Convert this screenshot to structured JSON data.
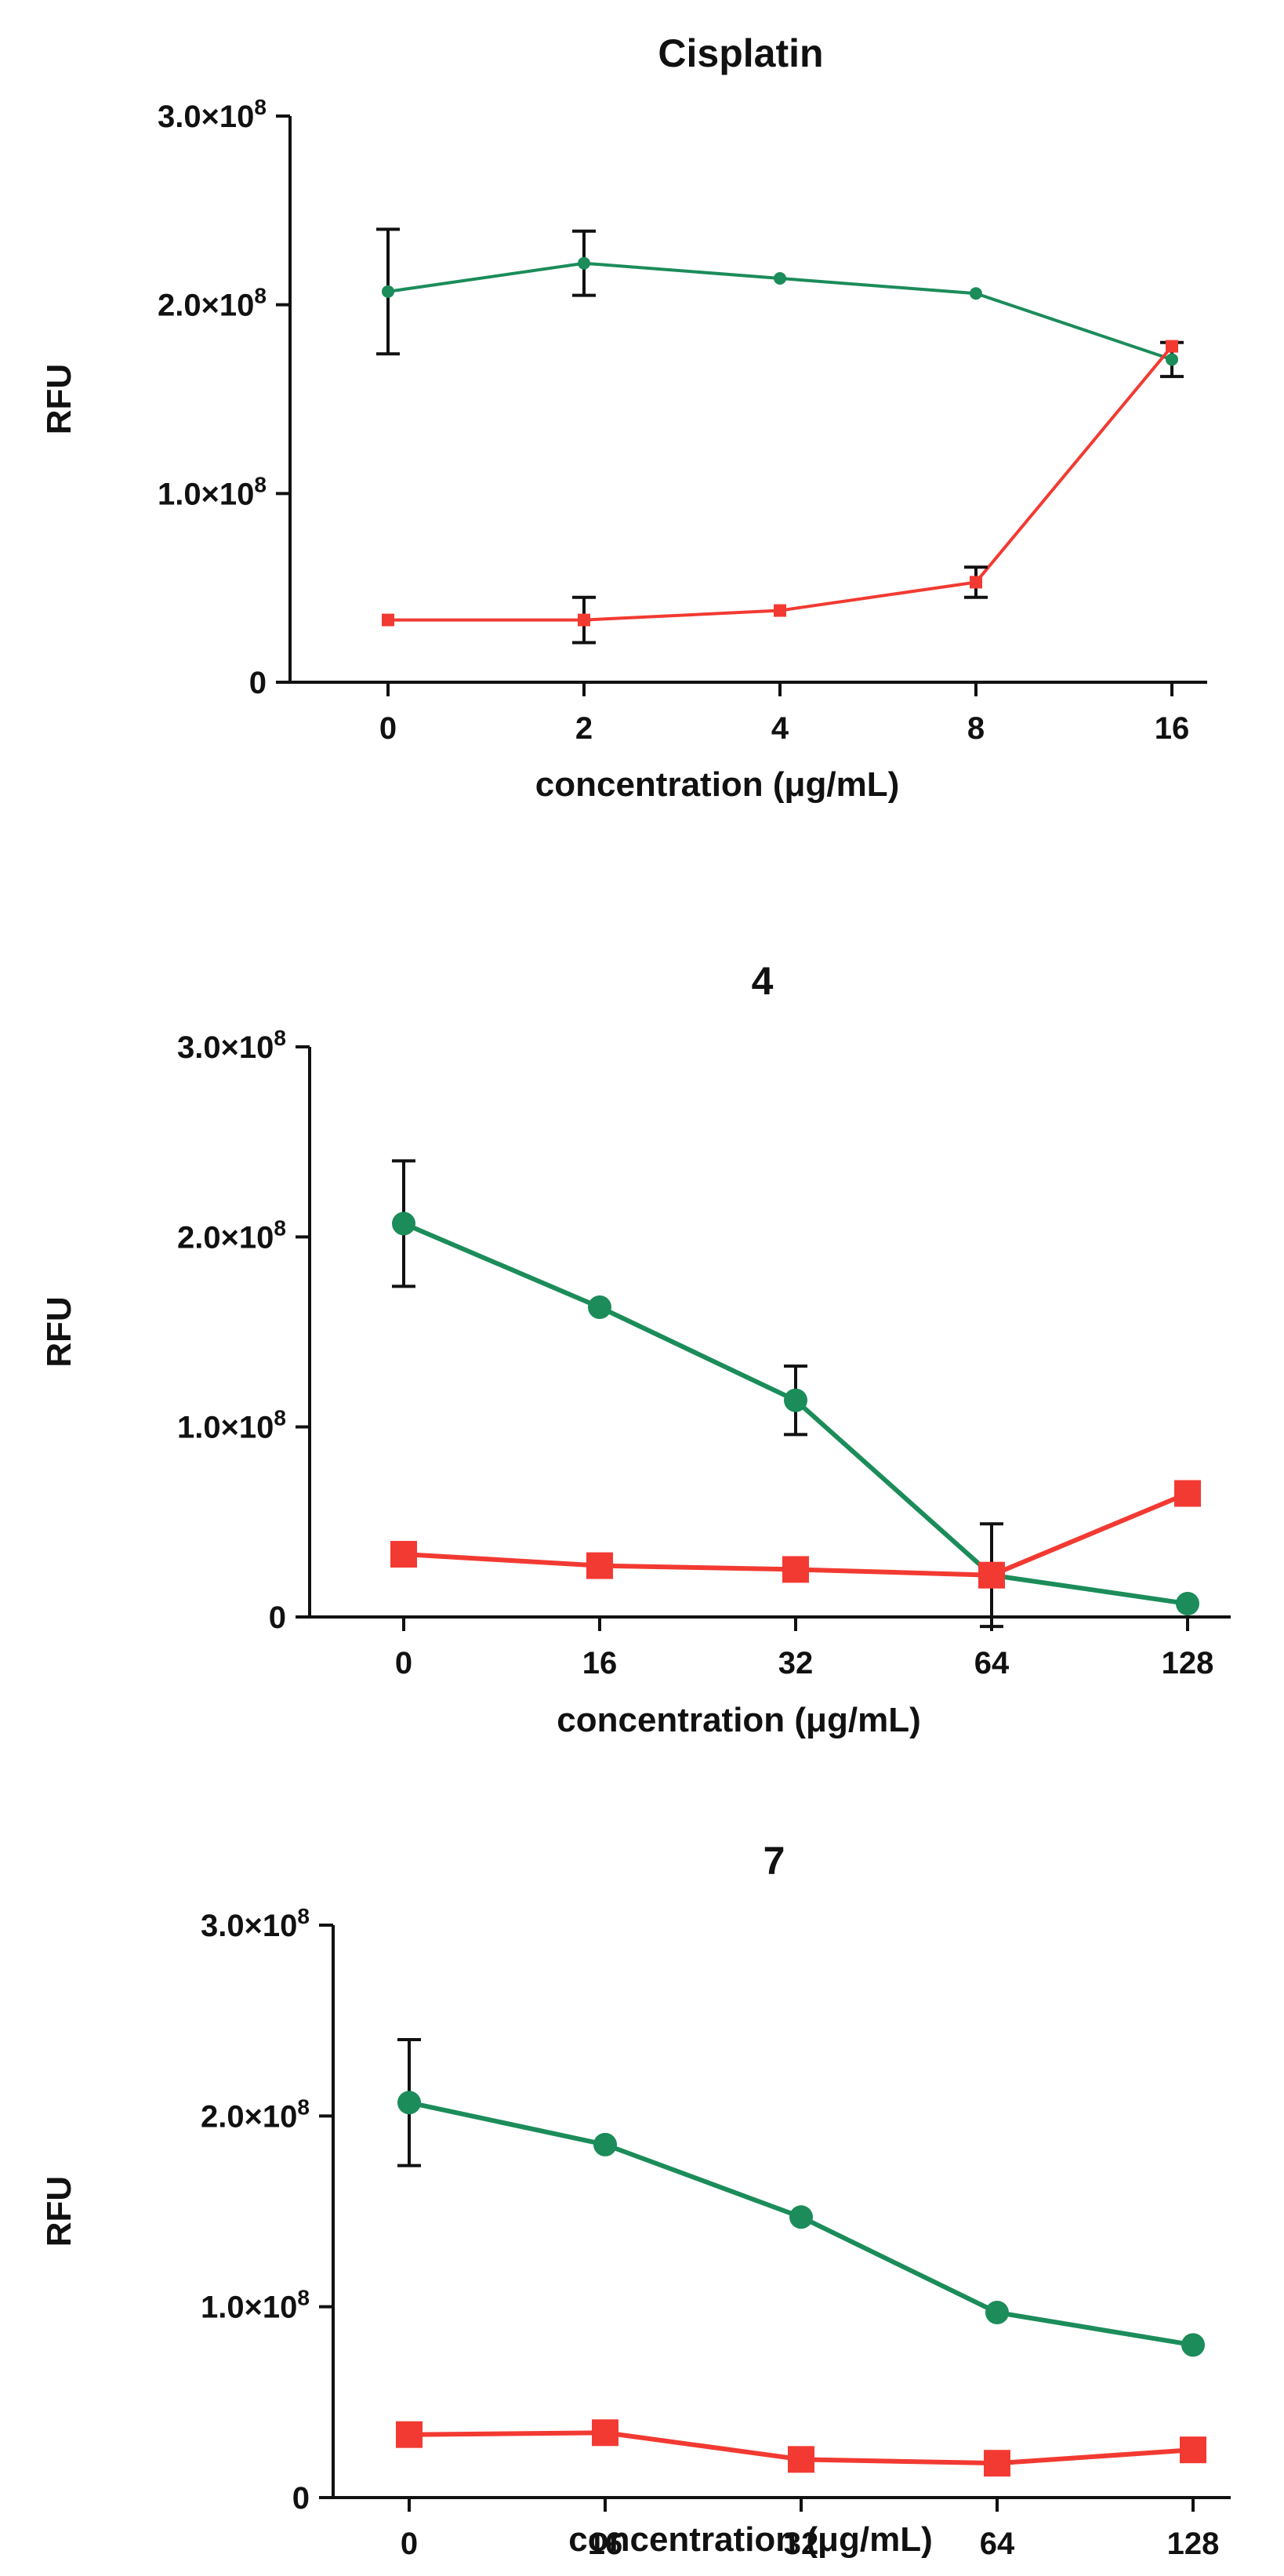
{
  "chart_data": [
    {
      "type": "line",
      "title": "Cisplatin",
      "xlabel": "concentration (μg/mL)",
      "ylabel": "RFU",
      "ylim": [
        0,
        300000000
      ],
      "categories": [
        "0",
        "2",
        "4",
        "8",
        "16"
      ],
      "yticks": [
        {
          "value": 0,
          "mantissa": "0",
          "exp": ""
        },
        {
          "value": 100000000,
          "mantissa": "1.0×10",
          "exp": "8"
        },
        {
          "value": 200000000,
          "mantissa": "2.0×10",
          "exp": "8"
        },
        {
          "value": 300000000,
          "mantissa": "3.0×10",
          "exp": "8"
        }
      ],
      "grid": false,
      "legend": "none",
      "series": [
        {
          "name": "green",
          "color": "#1b8c5a",
          "marker": "circle",
          "values": [
            207000000,
            222000000,
            214000000,
            206000000,
            171000000
          ],
          "errors": [
            33000000,
            17000000,
            0,
            0,
            9000000
          ]
        },
        {
          "name": "red",
          "color": "#f23a32",
          "marker": "square",
          "values": [
            33000000,
            33000000,
            38000000,
            53000000,
            178000000
          ],
          "errors": [
            0,
            12000000,
            0,
            8000000,
            0
          ]
        }
      ]
    },
    {
      "type": "line",
      "title": "4",
      "xlabel": "concentration (μg/mL)",
      "ylabel": "RFU",
      "ylim": [
        0,
        300000000
      ],
      "categories": [
        "0",
        "16",
        "32",
        "64",
        "128"
      ],
      "yticks": [
        {
          "value": 0,
          "mantissa": "0",
          "exp": ""
        },
        {
          "value": 100000000,
          "mantissa": "1.0×10",
          "exp": "8"
        },
        {
          "value": 200000000,
          "mantissa": "2.0×10",
          "exp": "8"
        },
        {
          "value": 300000000,
          "mantissa": "3.0×10",
          "exp": "8"
        }
      ],
      "grid": false,
      "legend": "none",
      "series": [
        {
          "name": "green",
          "color": "#1b8c5a",
          "marker": "circle",
          "values": [
            207000000,
            163000000,
            114000000,
            22000000,
            7000000
          ],
          "errors": [
            33000000,
            0,
            18000000,
            27000000,
            0
          ]
        },
        {
          "name": "red",
          "color": "#f23a32",
          "marker": "square",
          "values": [
            33000000,
            27000000,
            25000000,
            22000000,
            65000000
          ],
          "errors": [
            0,
            0,
            0,
            0,
            0
          ]
        }
      ]
    },
    {
      "type": "line",
      "title": "7",
      "xlabel": "concentration (μg/mL)",
      "ylabel": "RFU",
      "ylim": [
        0,
        300000000
      ],
      "categories": [
        "0",
        "16",
        "32",
        "64",
        "128"
      ],
      "yticks": [
        {
          "value": 0,
          "mantissa": "0",
          "exp": ""
        },
        {
          "value": 100000000,
          "mantissa": "1.0×10",
          "exp": "8"
        },
        {
          "value": 200000000,
          "mantissa": "2.0×10",
          "exp": "8"
        },
        {
          "value": 300000000,
          "mantissa": "3.0×10",
          "exp": "8"
        }
      ],
      "grid": false,
      "legend": "none",
      "series": [
        {
          "name": "green",
          "color": "#1b8c5a",
          "marker": "circle",
          "values": [
            207000000,
            185000000,
            147000000,
            97000000,
            80000000
          ],
          "errors": [
            33000000,
            0,
            0,
            0,
            0
          ]
        },
        {
          "name": "red",
          "color": "#f23a32",
          "marker": "square",
          "values": [
            33000000,
            34000000,
            20000000,
            18000000,
            25000000
          ],
          "errors": [
            0,
            0,
            0,
            0,
            0
          ]
        }
      ]
    }
  ]
}
